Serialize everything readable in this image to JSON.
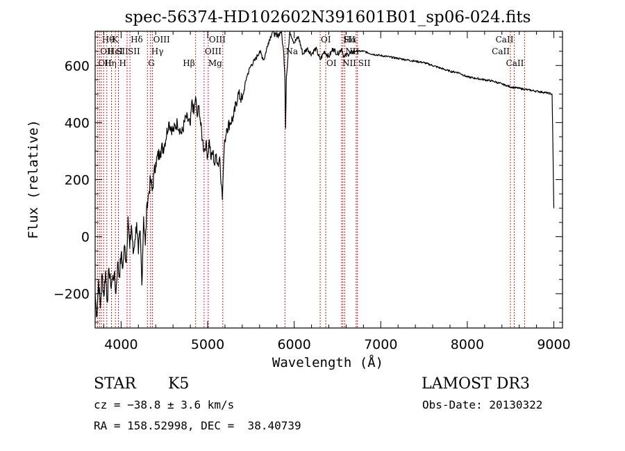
{
  "chart_data": {
    "type": "line",
    "title": "spec-56374-HD102602N391601B01_sp06-024.fits",
    "xlabel": "Wavelength (Å)",
    "ylabel": "Flux (relative)",
    "xlim": [
      3700,
      9100
    ],
    "ylim": [
      -320,
      720
    ],
    "xticks": [
      4000,
      5000,
      6000,
      7000,
      8000,
      9000
    ],
    "yticks": [
      -200,
      0,
      200,
      400,
      600
    ],
    "series": [
      {
        "name": "spectrum",
        "x": [
          3700,
          3720,
          3740,
          3760,
          3780,
          3800,
          3820,
          3840,
          3860,
          3880,
          3900,
          3920,
          3940,
          3960,
          3980,
          4000,
          4020,
          4040,
          4060,
          4080,
          4100,
          4120,
          4140,
          4160,
          4180,
          4200,
          4220,
          4240,
          4260,
          4280,
          4300,
          4320,
          4340,
          4360,
          4380,
          4400,
          4450,
          4500,
          4550,
          4600,
          4650,
          4700,
          4750,
          4800,
          4820,
          4840,
          4860,
          4880,
          4900,
          4920,
          4940,
          4960,
          4980,
          5000,
          5020,
          5040,
          5060,
          5080,
          5100,
          5120,
          5140,
          5160,
          5170,
          5180,
          5190,
          5200,
          5220,
          5260,
          5300,
          5350,
          5400,
          5450,
          5500,
          5550,
          5600,
          5650,
          5700,
          5750,
          5800,
          5850,
          5880,
          5893,
          5900,
          5910,
          5950,
          6000,
          6050,
          6100,
          6150,
          6200,
          6250,
          6300,
          6350,
          6400,
          6450,
          6500,
          6550,
          6563,
          6580,
          6620,
          6700,
          6800,
          6900,
          7000,
          7100,
          7200,
          7300,
          7400,
          7500,
          7600,
          7700,
          7800,
          7900,
          8000,
          8100,
          8200,
          8300,
          8400,
          8500,
          8600,
          8700,
          8800,
          8900,
          8980,
          9000
        ],
        "y": [
          -200,
          -280,
          -150,
          -250,
          -130,
          -210,
          -120,
          -230,
          -110,
          -170,
          -150,
          -130,
          -200,
          -90,
          -140,
          -60,
          -110,
          -30,
          -90,
          70,
          -40,
          40,
          -60,
          -10,
          50,
          -60,
          20,
          -170,
          70,
          -30,
          120,
          150,
          200,
          160,
          220,
          260,
          300,
          320,
          400,
          370,
          400,
          360,
          420,
          390,
          480,
          430,
          490,
          420,
          460,
          390,
          340,
          300,
          330,
          280,
          340,
          270,
          300,
          250,
          290,
          250,
          280,
          180,
          130,
          230,
          300,
          340,
          380,
          400,
          420,
          500,
          480,
          560,
          600,
          620,
          650,
          620,
          680,
          720,
          700,
          720,
          640,
          560,
          380,
          560,
          720,
          680,
          700,
          640,
          660,
          640,
          660,
          620,
          650,
          630,
          660,
          640,
          660,
          640,
          630,
          640,
          650,
          650,
          640,
          635,
          630,
          625,
          620,
          615,
          610,
          600,
          590,
          580,
          575,
          560,
          555,
          550,
          545,
          535,
          525,
          520,
          515,
          510,
          505,
          500,
          100
        ]
      }
    ],
    "lines": [
      {
        "wl": 3727,
        "label": "OII",
        "row": 2,
        "align": "start"
      },
      {
        "wl": 3750,
        "label": "OII",
        "row": 1,
        "align": "start"
      },
      {
        "wl": 3771,
        "label": "Hθ",
        "row": 0,
        "align": "start"
      },
      {
        "wl": 3798,
        "label": "Hη",
        "row": 2,
        "align": "start"
      },
      {
        "wl": 3835,
        "label": "HeI",
        "row": 1,
        "align": "start"
      },
      {
        "wl": 3889,
        "label": "K",
        "row": 0,
        "align": "start"
      },
      {
        "wl": 3934,
        "label": "SII",
        "row": 1,
        "align": "start"
      },
      {
        "wl": 3969,
        "label": "H",
        "row": 2,
        "align": "start"
      },
      {
        "wl": 4069,
        "label": "SII",
        "row": 1,
        "align": "start"
      },
      {
        "wl": 4102,
        "label": "Hδ",
        "row": 0,
        "align": "start"
      },
      {
        "wl": 4304,
        "label": "G",
        "row": 2,
        "align": "start"
      },
      {
        "wl": 4340,
        "label": "Hγ",
        "row": 1,
        "align": "start"
      },
      {
        "wl": 4363,
        "label": "OIII",
        "row": 0,
        "align": "start"
      },
      {
        "wl": 4861,
        "label": "Hβ",
        "row": 2,
        "align": "end"
      },
      {
        "wl": 4959,
        "label": "OIII",
        "row": 1,
        "align": "start"
      },
      {
        "wl": 5007,
        "label": "OIII",
        "row": 0,
        "align": "start"
      },
      {
        "wl": 5175,
        "label": "Mg",
        "row": 2,
        "align": "end"
      },
      {
        "wl": 5893,
        "label": "Na",
        "row": 1,
        "align": "start"
      },
      {
        "wl": 6300,
        "label": "OI",
        "row": 0,
        "align": "start"
      },
      {
        "wl": 6364,
        "label": "OI",
        "row": 2,
        "align": "start"
      },
      {
        "wl": 6548,
        "label": "NII",
        "row": 2,
        "align": "start"
      },
      {
        "wl": 6563,
        "label": "Hα",
        "row": 0,
        "align": "start"
      },
      {
        "wl": 6583,
        "label": "NII",
        "row": 1,
        "align": "start"
      },
      {
        "wl": 6716,
        "label": "SII",
        "row": 0,
        "align": "end"
      },
      {
        "wl": 6731,
        "label": "SII",
        "row": 2,
        "align": "start"
      },
      {
        "wl": 8498,
        "label": "CaII",
        "row": 1,
        "align": "end"
      },
      {
        "wl": 8542,
        "label": "CaII",
        "row": 0,
        "align": "end"
      },
      {
        "wl": 8662,
        "label": "CaII",
        "row": 2,
        "align": "end"
      }
    ]
  },
  "info": {
    "class_label": "STAR",
    "subclass": "K5",
    "survey": "LAMOST DR3",
    "cz": "cz = −38.8 ± 3.6 km/s",
    "obs_date": "Obs-Date: 20130322",
    "coords": "RA = 158.52998, DEC =  38.40739"
  }
}
